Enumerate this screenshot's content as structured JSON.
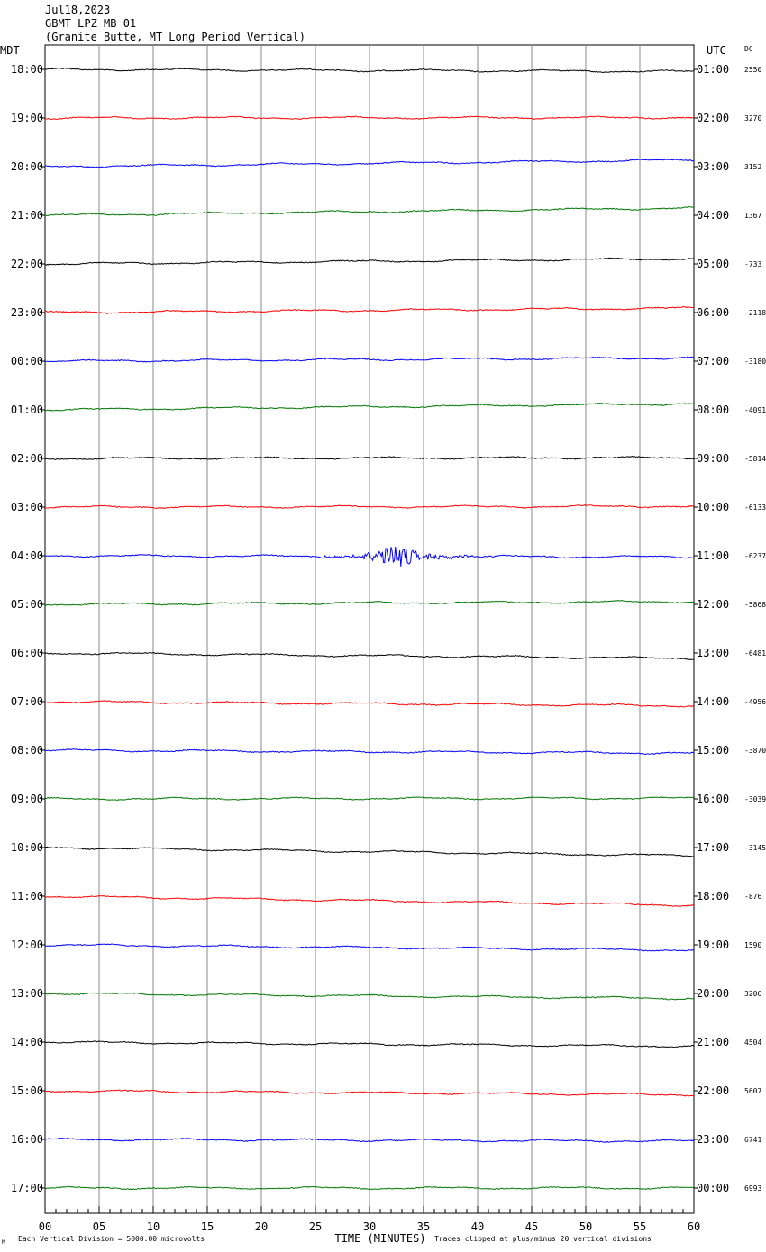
{
  "header": {
    "date": "Jul18,2023",
    "station": "GBMT LPZ MB 01",
    "location": "(Granite Butte, MT Long Period Vertical)"
  },
  "left_timezone": "MDT",
  "right_timezone": "UTC",
  "dc_label": "DC",
  "footer": {
    "scale_note": "Each Vertical Division = 5000.00 microvolts",
    "clip_note": "Traces clipped at plus/minus 20 vertical divisions",
    "corner_mark": "M"
  },
  "chart_data": {
    "type": "line",
    "xlabel": "TIME (MINUTES)",
    "xlim": [
      0,
      60
    ],
    "x_ticks": [
      "00",
      "05",
      "10",
      "15",
      "20",
      "25",
      "30",
      "35",
      "40",
      "45",
      "50",
      "55",
      "60"
    ],
    "grid": "vertical lines every 5 minutes",
    "trace_colors": [
      "#000000",
      "#ff0000",
      "#0000ff",
      "#007700"
    ],
    "rows": [
      {
        "local": "18:00",
        "utc": "01:00",
        "dc": "2550",
        "drift": -0.5
      },
      {
        "local": "19:00",
        "utc": "02:00",
        "dc": "3270",
        "drift": 0.1
      },
      {
        "local": "20:00",
        "utc": "03:00",
        "dc": "3152",
        "drift": 1.6
      },
      {
        "local": "21:00",
        "utc": "04:00",
        "dc": "1367",
        "drift": 1.8
      },
      {
        "local": "22:00",
        "utc": "05:00",
        "dc": "-733",
        "drift": 1.3
      },
      {
        "local": "23:00",
        "utc": "06:00",
        "dc": "-2118",
        "drift": 1.1
      },
      {
        "local": "00:00",
        "utc": "07:00",
        "dc": "-3180",
        "drift": 0.8
      },
      {
        "local": "01:00",
        "utc": "08:00",
        "dc": "-4091",
        "drift": 1.5
      },
      {
        "local": "02:00",
        "utc": "09:00",
        "dc": "-5814",
        "drift": 0.2
      },
      {
        "local": "03:00",
        "utc": "10:00",
        "dc": "-6133",
        "drift": 0.2
      },
      {
        "local": "04:00",
        "utc": "11:00",
        "dc": "-6237",
        "drift": -0.3,
        "event_minutes": [
          29.5,
          37.5
        ]
      },
      {
        "local": "05:00",
        "utc": "12:00",
        "dc": "-5868",
        "drift": 0.7
      },
      {
        "local": "06:00",
        "utc": "13:00",
        "dc": "-6481",
        "drift": -1.3
      },
      {
        "local": "07:00",
        "utc": "14:00",
        "dc": "-4956",
        "drift": -1.0
      },
      {
        "local": "08:00",
        "utc": "15:00",
        "dc": "-3870",
        "drift": -0.7
      },
      {
        "local": "09:00",
        "utc": "16:00",
        "dc": "-3039",
        "drift": 0.2
      },
      {
        "local": "10:00",
        "utc": "17:00",
        "dc": "-3145",
        "drift": -2.0
      },
      {
        "local": "11:00",
        "utc": "18:00",
        "dc": "-876",
        "drift": -2.2
      },
      {
        "local": "12:00",
        "utc": "19:00",
        "dc": "1590",
        "drift": -1.3
      },
      {
        "local": "13:00",
        "utc": "20:00",
        "dc": "3206",
        "drift": -1.2
      },
      {
        "local": "14:00",
        "utc": "21:00",
        "dc": "4504",
        "drift": -1.0
      },
      {
        "local": "15:00",
        "utc": "22:00",
        "dc": "5607",
        "drift": -1.0
      },
      {
        "local": "16:00",
        "utc": "23:00",
        "dc": "6741",
        "drift": -0.4
      },
      {
        "local": "17:00",
        "utc": "00:00",
        "dc": "6993",
        "drift": 0.0
      }
    ]
  }
}
